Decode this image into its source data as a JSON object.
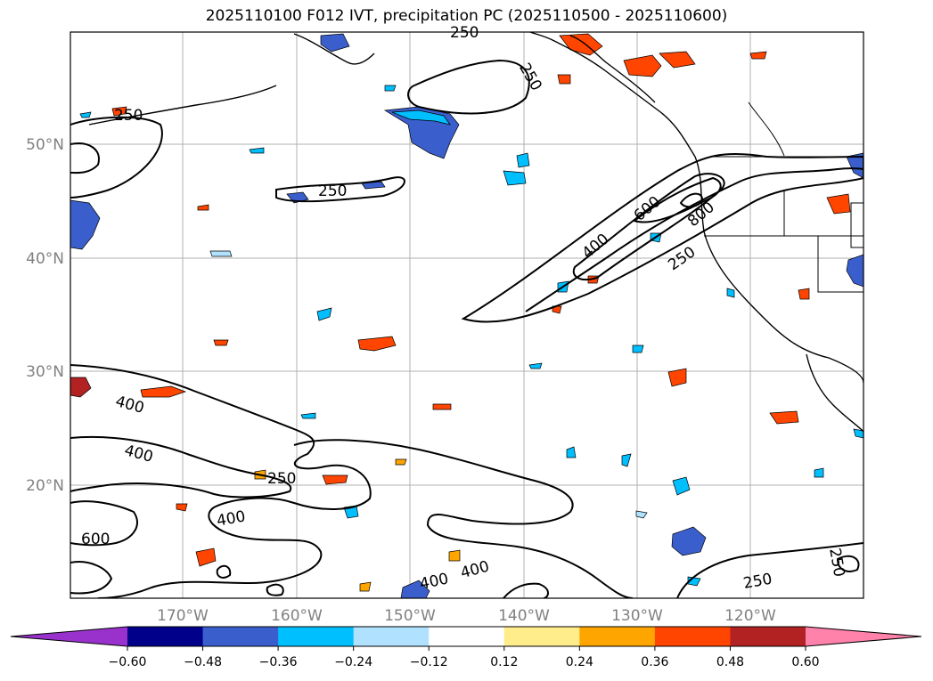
{
  "title": "2025110100 F012 IVT, precipitation PC (2025110500 - 2025110600)",
  "lat_labels": [
    "50°N",
    "40°N",
    "30°N",
    "20°N"
  ],
  "lon_labels": [
    "170°W",
    "160°W",
    "150°W",
    "140°W",
    "130°W",
    "120°W"
  ],
  "contour_labels": [
    "250",
    "250",
    "250",
    "250",
    "600",
    "400",
    "800",
    "250",
    "400",
    "400",
    "250",
    "400",
    "600",
    "400",
    "400",
    "250",
    "250"
  ],
  "colorbar": {
    "ticks": [
      "−0.60",
      "−0.48",
      "−0.36",
      "−0.24",
      "−0.12",
      "0.12",
      "0.24",
      "0.36",
      "0.48",
      "0.60"
    ],
    "colors": [
      "#9932cc",
      "#00008b",
      "#3a5fcd",
      "#00bfff",
      "#b0e2ff",
      "#ffffff",
      "#ffec8b",
      "#ffa500",
      "#ff4500",
      "#b22222",
      "#ff82ab"
    ]
  }
}
